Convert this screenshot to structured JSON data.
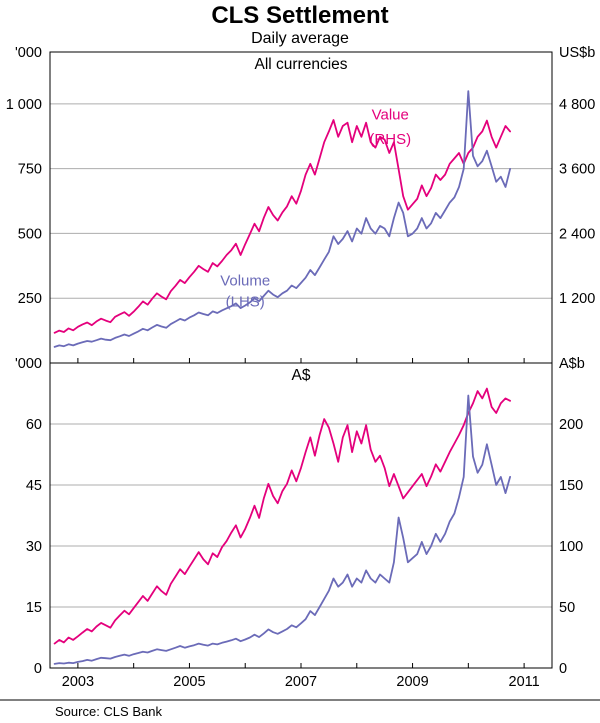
{
  "page": {
    "title": "CLS Settlement",
    "subtitle": "Daily average",
    "source": "Source: CLS Bank"
  },
  "colors": {
    "value_line": "#E4007C",
    "volume_line": "#6B6BB8",
    "grid": "#ADADAD",
    "axis": "#000000",
    "text": "#000000"
  },
  "x_axis": {
    "min": 2002.5,
    "max": 2011.5,
    "tick_years": [
      2003,
      2004,
      2005,
      2006,
      2007,
      2008,
      2009,
      2010,
      2011
    ],
    "label_years": [
      "2003",
      "2005",
      "2007",
      "2009",
      "2011"
    ]
  },
  "chart_data": [
    {
      "type": "line",
      "title": "All currencies",
      "left_axis": {
        "unit": "'000",
        "min": 0,
        "max": 1200,
        "ticks": [
          250,
          500,
          750,
          1000
        ],
        "tick_labels": [
          "250",
          "500",
          "750",
          "1 000"
        ],
        "zero_label": ""
      },
      "right_axis": {
        "unit": "US$b",
        "min": 0,
        "max": 5760,
        "ticks": [
          1200,
          2400,
          3600,
          4800
        ],
        "tick_labels": [
          "1 200",
          "2 400",
          "3 600",
          "4 800"
        ],
        "zero_label": ""
      },
      "x_start": 2002.583,
      "x_step": 0.083333,
      "series": [
        {
          "name": "Value (RHS)",
          "axis": "right",
          "color": "value_line",
          "values": [
            560,
            600,
            575,
            640,
            605,
            670,
            715,
            750,
            700,
            770,
            820,
            785,
            755,
            855,
            900,
            940,
            875,
            950,
            1040,
            1140,
            1080,
            1190,
            1290,
            1230,
            1180,
            1330,
            1430,
            1540,
            1480,
            1590,
            1690,
            1800,
            1740,
            1690,
            1850,
            1790,
            1890,
            2000,
            2090,
            2210,
            2000,
            2200,
            2390,
            2580,
            2440,
            2690,
            2890,
            2740,
            2640,
            2790,
            2900,
            3090,
            2950,
            3190,
            3490,
            3690,
            3490,
            3790,
            4090,
            4290,
            4500,
            4190,
            4390,
            4450,
            4090,
            4390,
            4190,
            4450,
            4090,
            3990,
            4190,
            4140,
            3890,
            4090,
            3590,
            3090,
            2840,
            2940,
            3040,
            3290,
            3090,
            3240,
            3490,
            3390,
            3490,
            3690,
            3790,
            3890,
            3690,
            3890,
            3990,
            4190,
            4290,
            4490,
            4190,
            3990,
            4190,
            4390,
            4290
          ]
        },
        {
          "name": "Volume (LHS)",
          "axis": "left",
          "color": "volume_line",
          "values": [
            62,
            68,
            65,
            72,
            68,
            75,
            80,
            85,
            82,
            88,
            94,
            90,
            88,
            97,
            103,
            110,
            104,
            113,
            122,
            132,
            126,
            137,
            147,
            141,
            136,
            150,
            160,
            170,
            164,
            175,
            184,
            195,
            189,
            184,
            199,
            193,
            203,
            211,
            219,
            230,
            212,
            222,
            234,
            250,
            239,
            259,
            279,
            264,
            254,
            269,
            279,
            299,
            289,
            309,
            329,
            359,
            339,
            369,
            399,
            429,
            489,
            459,
            479,
            509,
            469,
            519,
            499,
            559,
            519,
            499,
            529,
            519,
            489,
            559,
            619,
            579,
            489,
            499,
            519,
            559,
            519,
            539,
            579,
            559,
            589,
            619,
            639,
            679,
            749,
            1049,
            799,
            759,
            779,
            819,
            759,
            699,
            719,
            679,
            749
          ]
        }
      ],
      "annotations": [
        {
          "text": "Value",
          "x": 2008.6,
          "y": 940,
          "color": "value_line"
        },
        {
          "text": "(RHS)",
          "x": 2008.6,
          "y": 845,
          "color": "value_line"
        },
        {
          "text": "Volume",
          "x": 2006.0,
          "y": 300,
          "color": "volume_line"
        },
        {
          "text": "(LHS)",
          "x": 2006.0,
          "y": 218,
          "color": "volume_line"
        }
      ]
    },
    {
      "type": "line",
      "title": "A$",
      "left_axis": {
        "unit": "'000",
        "min": 0,
        "max": 75,
        "ticks": [
          15,
          30,
          45,
          60
        ],
        "tick_labels": [
          "15",
          "30",
          "45",
          "60"
        ],
        "zero_label": "0"
      },
      "right_axis": {
        "unit": "A$b",
        "min": 0,
        "max": 250,
        "ticks": [
          50,
          100,
          150,
          200
        ],
        "tick_labels": [
          "50",
          "100",
          "150",
          "200"
        ],
        "zero_label": "0"
      },
      "x_start": 2002.583,
      "x_step": 0.083333,
      "series": [
        {
          "name": "Value (RHS)",
          "axis": "right",
          "color": "value_line",
          "values": [
            20,
            23,
            21,
            25,
            23,
            26,
            29,
            32,
            30,
            34,
            37,
            35,
            33,
            39,
            43,
            47,
            44,
            49,
            54,
            59,
            55,
            61,
            67,
            63,
            60,
            69,
            75,
            81,
            77,
            83,
            89,
            95,
            89,
            85,
            94,
            91,
            99,
            104,
            111,
            117,
            107,
            114,
            123,
            133,
            123,
            139,
            151,
            141,
            135,
            145,
            151,
            162,
            153,
            164,
            177,
            189,
            174,
            191,
            204,
            197,
            184,
            169,
            189,
            199,
            177,
            194,
            184,
            199,
            179,
            169,
            174,
            164,
            149,
            159,
            149,
            139,
            144,
            149,
            154,
            159,
            149,
            157,
            167,
            161,
            169,
            177,
            184,
            191,
            199,
            209,
            217,
            227,
            221,
            229,
            214,
            209,
            217,
            221,
            219
          ]
        },
        {
          "name": "Volume (LHS)",
          "axis": "left",
          "color": "volume_line",
          "values": [
            1,
            1.2,
            1.1,
            1.3,
            1.2,
            1.5,
            1.7,
            2,
            1.8,
            2.2,
            2.5,
            2.4,
            2.3,
            2.7,
            3,
            3.3,
            3,
            3.4,
            3.7,
            4,
            3.8,
            4.2,
            4.6,
            4.4,
            4.2,
            4.6,
            5,
            5.4,
            5,
            5.3,
            5.6,
            6,
            5.7,
            5.5,
            6,
            5.8,
            6.2,
            6.5,
            6.8,
            7.2,
            6.6,
            7,
            7.5,
            8.2,
            7.6,
            8.5,
            9.5,
            8.8,
            8.4,
            9,
            9.6,
            10.5,
            10,
            11,
            12,
            14,
            13,
            15,
            17,
            19,
            22,
            20,
            21,
            23,
            20,
            22,
            21,
            24,
            22,
            21,
            23,
            22,
            21,
            26,
            37,
            32,
            26,
            27,
            28,
            31,
            28,
            30,
            33,
            31,
            33,
            36,
            38,
            42,
            47,
            67,
            52,
            48,
            50,
            55,
            50,
            45,
            47,
            43,
            47
          ]
        }
      ],
      "annotations": []
    }
  ]
}
